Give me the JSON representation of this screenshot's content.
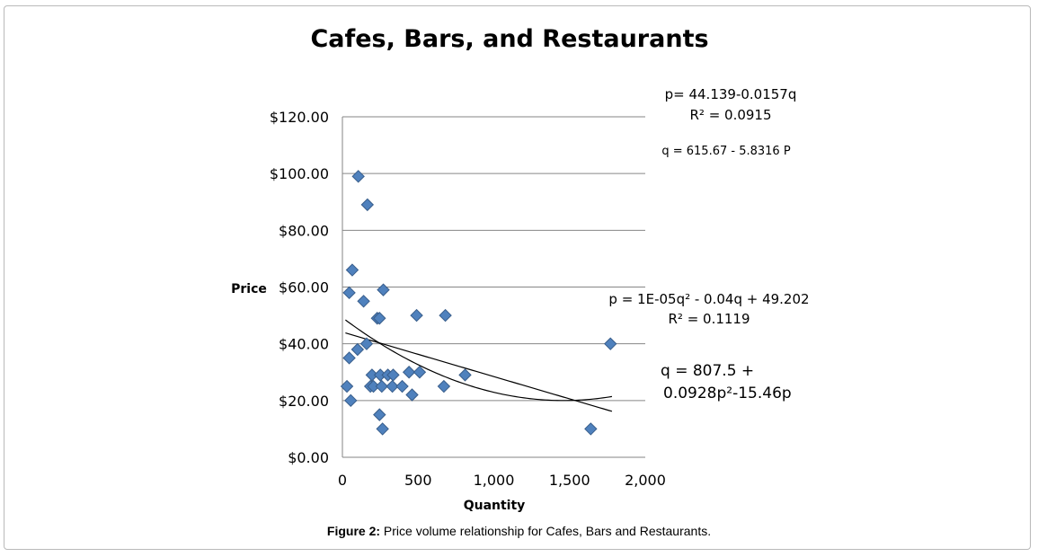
{
  "chart_data": {
    "type": "scatter",
    "title": "Cafes, Bars, and Restaurants",
    "xlabel": "Quantity",
    "ylabel": "Price",
    "xlim": [
      0,
      2000
    ],
    "ylim": [
      0,
      120
    ],
    "x_ticks": [
      "0",
      "500",
      "1,000",
      "1,500",
      "2,000"
    ],
    "y_ticks": [
      "$0.00",
      "$20.00",
      "$40.00",
      "$60.00",
      "$80.00",
      "$100.00",
      "$120.00"
    ],
    "grid": "horizontal",
    "points": [
      {
        "x": 105,
        "y": 99
      },
      {
        "x": 165,
        "y": 89
      },
      {
        "x": 65,
        "y": 66
      },
      {
        "x": 45,
        "y": 58
      },
      {
        "x": 270,
        "y": 59
      },
      {
        "x": 140,
        "y": 55
      },
      {
        "x": 230,
        "y": 49
      },
      {
        "x": 245,
        "y": 49
      },
      {
        "x": 490,
        "y": 50
      },
      {
        "x": 680,
        "y": 50
      },
      {
        "x": 1770,
        "y": 40
      },
      {
        "x": 160,
        "y": 40
      },
      {
        "x": 100,
        "y": 38
      },
      {
        "x": 45,
        "y": 35
      },
      {
        "x": 440,
        "y": 30
      },
      {
        "x": 510,
        "y": 30
      },
      {
        "x": 810,
        "y": 29
      },
      {
        "x": 195,
        "y": 29
      },
      {
        "x": 250,
        "y": 29
      },
      {
        "x": 300,
        "y": 29
      },
      {
        "x": 335,
        "y": 29
      },
      {
        "x": 30,
        "y": 25
      },
      {
        "x": 185,
        "y": 25
      },
      {
        "x": 205,
        "y": 25
      },
      {
        "x": 260,
        "y": 25
      },
      {
        "x": 330,
        "y": 25
      },
      {
        "x": 395,
        "y": 25
      },
      {
        "x": 670,
        "y": 25
      },
      {
        "x": 460,
        "y": 22
      },
      {
        "x": 55,
        "y": 20
      },
      {
        "x": 245,
        "y": 15
      },
      {
        "x": 265,
        "y": 10
      },
      {
        "x": 1640,
        "y": 10
      }
    ],
    "series": [
      {
        "type": "linear-fit",
        "intercept": 44.139,
        "slope": -0.0157
      },
      {
        "type": "quadratic-fit",
        "a": 1.37e-05,
        "b": -0.04,
        "c": 49.202
      }
    ],
    "marker_color": "#4f81bd",
    "annotations": {
      "linear_eq": "p=  44.139-0.0157q",
      "linear_r2": "R² = 0.0915",
      "inverse_linear": "q = 615.67 - 5.8316 P",
      "quad_eq": "p = 1E-05q² - 0.04q + 49.202",
      "quad_r2": "R² = 0.1119",
      "inverse_quad_line1": "q = 807.5 +",
      "inverse_quad_line2": "0.0928p²-15.46p"
    }
  },
  "caption": {
    "label": "Figure 2:",
    "text": " Price volume relationship for Cafes, Bars and Restaurants."
  }
}
